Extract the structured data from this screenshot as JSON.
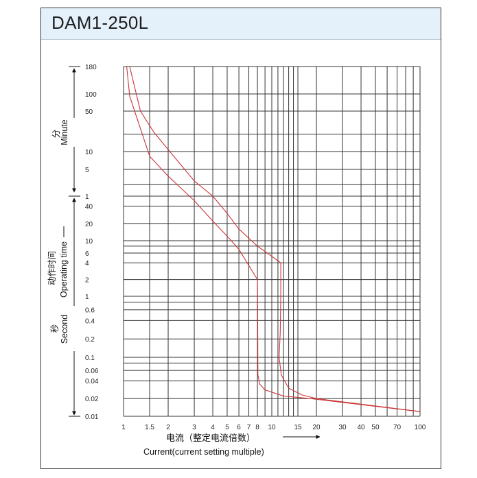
{
  "header": {
    "title": "DAM1-250L"
  },
  "chart_data": {
    "type": "line",
    "title": "DAM1-250L",
    "xlabel_cn": "电流（整定电流倍数）",
    "xlabel_en": "Current(current setting multiple)",
    "x_scale": "log",
    "xlim": [
      1,
      100
    ],
    "x_ticks": [
      "1",
      "1.5",
      "2",
      "3",
      "4",
      "5",
      "6",
      "7",
      "8",
      "10",
      "15",
      "20",
      "30",
      "40",
      "50",
      "70",
      "100"
    ],
    "x_grid_values": [
      1,
      1.5,
      2,
      3,
      4,
      5,
      6,
      7,
      8,
      9,
      10,
      11,
      12,
      13,
      14,
      15,
      20,
      30,
      40,
      50,
      60,
      70,
      80,
      90,
      100
    ],
    "y_scale": "log",
    "y_sections": {
      "minute": {
        "label_cn": "分",
        "label_en": "Minute",
        "ticks": [
          "180",
          "100",
          "50",
          "10",
          "5",
          "1"
        ]
      },
      "second": {
        "label_cn": "秒",
        "label_en": "Second",
        "ticks": [
          "40",
          "20",
          "10",
          "6",
          "4",
          "2",
          "1",
          "0.6",
          "0.4",
          "0.2",
          "0.1",
          "0.06",
          "0.04",
          "0.02",
          "0.01"
        ]
      },
      "operating": {
        "label_cn": "动作时间",
        "label_en": "Operating time"
      }
    },
    "y_ticks": [
      {
        "label": "180",
        "seconds": 10800
      },
      {
        "label": "100",
        "seconds": 6000
      },
      {
        "label": "50",
        "seconds": 3000
      },
      {
        "label": "10",
        "seconds": 600
      },
      {
        "label": "5",
        "seconds": 300
      },
      {
        "label": "1",
        "seconds": 60
      },
      {
        "label": "40",
        "seconds": 40
      },
      {
        "label": "20",
        "seconds": 20
      },
      {
        "label": "10",
        "seconds": 10
      },
      {
        "label": "6",
        "seconds": 6
      },
      {
        "label": "4",
        "seconds": 4
      },
      {
        "label": "2",
        "seconds": 2
      },
      {
        "label": "1",
        "seconds": 1
      },
      {
        "label": "0.6",
        "seconds": 0.6
      },
      {
        "label": "0.4",
        "seconds": 0.4
      },
      {
        "label": "0.2",
        "seconds": 0.2
      },
      {
        "label": "0.1",
        "seconds": 0.1
      },
      {
        "label": "0.06",
        "seconds": 0.06
      },
      {
        "label": "0.04",
        "seconds": 0.04
      },
      {
        "label": "0.02",
        "seconds": 0.02
      },
      {
        "label": "0.01",
        "seconds": 0.01
      }
    ],
    "y_grid_seconds": [
      10800,
      6000,
      3000,
      1200,
      600,
      300,
      120,
      60,
      40,
      20,
      10,
      8,
      6,
      4,
      2,
      1,
      0.8,
      0.6,
      0.4,
      0.2,
      0.1,
      0.08,
      0.06,
      0.04,
      0.02,
      0.01
    ],
    "line_color": "#cc3333",
    "series": [
      {
        "points": [
          [
            1.05,
            10800
          ],
          [
            1.1,
            5500
          ],
          [
            1.3,
            1500
          ],
          [
            1.5,
            500
          ],
          [
            2,
            200
          ],
          [
            3,
            50
          ],
          [
            4,
            22
          ],
          [
            5,
            12
          ],
          [
            6,
            7
          ],
          [
            8,
            2
          ],
          [
            8.03,
            0.5
          ],
          [
            8.06,
            0.05
          ],
          [
            8.3,
            0.035
          ],
          [
            9,
            0.028
          ],
          [
            12,
            0.022
          ],
          [
            18,
            0.02
          ],
          [
            100,
            0.012
          ]
        ]
      },
      {
        "points": [
          [
            1.1,
            10800
          ],
          [
            1.3,
            3000
          ],
          [
            1.6,
            1300
          ],
          [
            2,
            650
          ],
          [
            3,
            150
          ],
          [
            4,
            60
          ],
          [
            5,
            30
          ],
          [
            6,
            16
          ],
          [
            8,
            8
          ],
          [
            11.5,
            4
          ],
          [
            11.5,
            1
          ],
          [
            11.4,
            0.25
          ],
          [
            11.2,
            0.1
          ],
          [
            11.6,
            0.05
          ],
          [
            13,
            0.03
          ],
          [
            16,
            0.023
          ],
          [
            20,
            0.02
          ],
          [
            100,
            0.012
          ]
        ]
      }
    ]
  }
}
